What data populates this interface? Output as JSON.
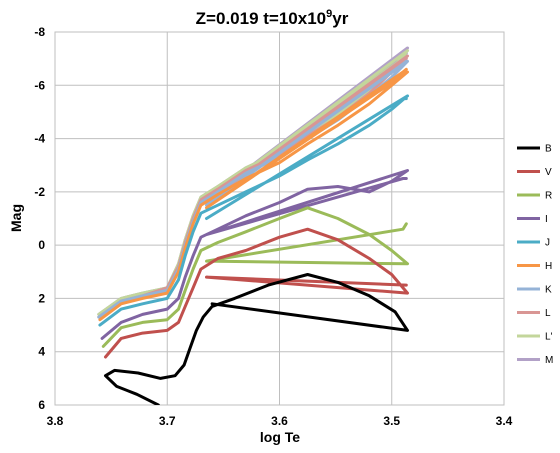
{
  "chart_data": {
    "type": "line",
    "title": {
      "main": "Z=0.019   t=10x10",
      "sup": "9",
      "unit": "yr"
    },
    "xlabel": "log Te",
    "ylabel": "Mag",
    "xlim": [
      3.8,
      3.4
    ],
    "ylim": [
      -8,
      6
    ],
    "xticks": [
      "3.8",
      "3.7",
      "3.6",
      "3.5",
      "3.4"
    ],
    "yticks": [
      "-8",
      "-6",
      "-4",
      "-2",
      "0",
      "2",
      "4",
      "6"
    ],
    "grid": true,
    "legend_position": "right",
    "series": [
      {
        "name": "B",
        "color": "#000000",
        "points": [
          [
            3.708,
            6.0
          ],
          [
            3.727,
            5.6
          ],
          [
            3.745,
            5.3
          ],
          [
            3.755,
            4.9
          ],
          [
            3.747,
            4.7
          ],
          [
            3.726,
            4.8
          ],
          [
            3.706,
            5.0
          ],
          [
            3.693,
            4.9
          ],
          [
            3.685,
            4.5
          ],
          [
            3.68,
            3.9
          ],
          [
            3.674,
            3.2
          ],
          [
            3.668,
            2.7
          ],
          [
            3.66,
            2.3
          ],
          [
            3.64,
            2.0
          ],
          [
            3.61,
            1.5
          ],
          [
            3.575,
            1.1
          ],
          [
            3.548,
            1.4
          ],
          [
            3.52,
            1.9
          ],
          [
            3.497,
            2.5
          ],
          [
            3.486,
            3.2
          ],
          [
            3.66,
            2.2
          ]
        ]
      },
      {
        "name": "V",
        "color": "#c0504d",
        "points": [
          [
            3.755,
            4.2
          ],
          [
            3.741,
            3.5
          ],
          [
            3.722,
            3.3
          ],
          [
            3.7,
            3.2
          ],
          [
            3.69,
            2.9
          ],
          [
            3.684,
            2.3
          ],
          [
            3.677,
            1.6
          ],
          [
            3.67,
            0.9
          ],
          [
            3.655,
            0.5
          ],
          [
            3.63,
            0.2
          ],
          [
            3.6,
            -0.3
          ],
          [
            3.575,
            -0.6
          ],
          [
            3.548,
            -0.2
          ],
          [
            3.52,
            0.5
          ],
          [
            3.5,
            1.1
          ],
          [
            3.486,
            1.8
          ],
          [
            3.665,
            1.2
          ],
          [
            3.487,
            1.5
          ]
        ]
      },
      {
        "name": "R",
        "color": "#9bbb59",
        "points": [
          [
            3.757,
            3.8
          ],
          [
            3.741,
            3.1
          ],
          [
            3.722,
            2.9
          ],
          [
            3.7,
            2.8
          ],
          [
            3.69,
            2.4
          ],
          [
            3.684,
            1.7
          ],
          [
            3.677,
            0.9
          ],
          [
            3.67,
            0.2
          ],
          [
            3.655,
            -0.1
          ],
          [
            3.63,
            -0.5
          ],
          [
            3.6,
            -1.0
          ],
          [
            3.575,
            -1.4
          ],
          [
            3.548,
            -1.0
          ],
          [
            3.52,
            -0.4
          ],
          [
            3.5,
            0.2
          ],
          [
            3.486,
            0.7
          ],
          [
            3.665,
            0.6
          ],
          [
            3.49,
            -0.6
          ],
          [
            3.487,
            -0.8
          ]
        ]
      },
      {
        "name": "I",
        "color": "#8064a2",
        "points": [
          [
            3.758,
            3.5
          ],
          [
            3.741,
            2.9
          ],
          [
            3.722,
            2.6
          ],
          [
            3.7,
            2.4
          ],
          [
            3.69,
            2.0
          ],
          [
            3.684,
            1.2
          ],
          [
            3.677,
            0.4
          ],
          [
            3.67,
            -0.3
          ],
          [
            3.655,
            -0.6
          ],
          [
            3.63,
            -1.1
          ],
          [
            3.6,
            -1.6
          ],
          [
            3.575,
            -2.1
          ],
          [
            3.548,
            -2.2
          ],
          [
            3.52,
            -2.0
          ],
          [
            3.5,
            -2.4
          ],
          [
            3.486,
            -2.8
          ],
          [
            3.665,
            -0.4
          ],
          [
            3.49,
            -2.5
          ],
          [
            3.487,
            -2.5
          ]
        ]
      },
      {
        "name": "J",
        "color": "#4bacc6",
        "points": [
          [
            3.76,
            3.0
          ],
          [
            3.741,
            2.4
          ],
          [
            3.722,
            2.2
          ],
          [
            3.7,
            2.0
          ],
          [
            3.69,
            1.3
          ],
          [
            3.684,
            0.4
          ],
          [
            3.677,
            -0.5
          ],
          [
            3.67,
            -1.2
          ],
          [
            3.655,
            -1.5
          ],
          [
            3.63,
            -2.0
          ],
          [
            3.6,
            -2.6
          ],
          [
            3.575,
            -3.2
          ],
          [
            3.548,
            -3.8
          ],
          [
            3.52,
            -4.5
          ],
          [
            3.5,
            -5.1
          ],
          [
            3.486,
            -5.6
          ],
          [
            3.665,
            -1.0
          ],
          [
            3.49,
            -5.5
          ],
          [
            3.487,
            -5.5
          ]
        ]
      },
      {
        "name": "H",
        "color": "#f79646",
        "points": [
          [
            3.76,
            2.8
          ],
          [
            3.741,
            2.2
          ],
          [
            3.722,
            2.0
          ],
          [
            3.7,
            1.8
          ],
          [
            3.69,
            1.0
          ],
          [
            3.684,
            0.1
          ],
          [
            3.677,
            -0.8
          ],
          [
            3.67,
            -1.5
          ],
          [
            3.655,
            -1.9
          ],
          [
            3.63,
            -2.5
          ],
          [
            3.6,
            -3.1
          ],
          [
            3.575,
            -3.8
          ],
          [
            3.548,
            -4.5
          ],
          [
            3.52,
            -5.3
          ],
          [
            3.5,
            -6.0
          ],
          [
            3.486,
            -6.5
          ],
          [
            3.665,
            -1.4
          ],
          [
            3.49,
            -6.5
          ],
          [
            3.487,
            -6.6
          ]
        ]
      },
      {
        "name": "K",
        "color": "#95b3d7",
        "points": [
          [
            3.761,
            2.7
          ],
          [
            3.741,
            2.1
          ],
          [
            3.722,
            1.9
          ],
          [
            3.7,
            1.7
          ],
          [
            3.69,
            0.9
          ],
          [
            3.684,
            0.0
          ],
          [
            3.677,
            -0.9
          ],
          [
            3.67,
            -1.6
          ],
          [
            3.655,
            -2.0
          ],
          [
            3.63,
            -2.7
          ],
          [
            3.6,
            -3.3
          ],
          [
            3.575,
            -4.0
          ],
          [
            3.548,
            -4.7
          ],
          [
            3.52,
            -5.6
          ],
          [
            3.5,
            -6.3
          ],
          [
            3.486,
            -6.9
          ],
          [
            3.665,
            -1.5
          ],
          [
            3.49,
            -6.8
          ],
          [
            3.487,
            -6.9
          ]
        ]
      },
      {
        "name": "L",
        "color": "#d99694",
        "points": [
          [
            3.761,
            2.7
          ],
          [
            3.741,
            2.1
          ],
          [
            3.722,
            1.9
          ],
          [
            3.7,
            1.6
          ],
          [
            3.69,
            0.8
          ],
          [
            3.684,
            -0.1
          ],
          [
            3.677,
            -1.0
          ],
          [
            3.67,
            -1.7
          ],
          [
            3.655,
            -2.1
          ],
          [
            3.63,
            -2.8
          ],
          [
            3.6,
            -3.4
          ],
          [
            3.575,
            -4.1
          ],
          [
            3.548,
            -4.8
          ],
          [
            3.52,
            -5.7
          ],
          [
            3.5,
            -6.5
          ],
          [
            3.486,
            -7.1
          ],
          [
            3.665,
            -1.6
          ],
          [
            3.49,
            -6.9
          ],
          [
            3.487,
            -7.0
          ]
        ]
      },
      {
        "name": "L'",
        "color": "#c3d69b",
        "points": [
          [
            3.761,
            2.6
          ],
          [
            3.741,
            2.0
          ],
          [
            3.722,
            1.8
          ],
          [
            3.7,
            1.6
          ],
          [
            3.69,
            0.7
          ],
          [
            3.684,
            -0.2
          ],
          [
            3.677,
            -1.1
          ],
          [
            3.67,
            -1.8
          ],
          [
            3.655,
            -2.2
          ],
          [
            3.63,
            -2.9
          ],
          [
            3.6,
            -3.5
          ],
          [
            3.575,
            -4.2
          ],
          [
            3.548,
            -4.9
          ],
          [
            3.52,
            -5.8
          ],
          [
            3.5,
            -6.6
          ],
          [
            3.486,
            -7.3
          ],
          [
            3.665,
            -1.7
          ],
          [
            3.49,
            -7.0
          ],
          [
            3.487,
            -7.1
          ]
        ]
      },
      {
        "name": "M",
        "color": "#b2a1c7",
        "points": [
          [
            3.761,
            2.6
          ],
          [
            3.741,
            2.0
          ],
          [
            3.722,
            1.8
          ],
          [
            3.7,
            1.6
          ],
          [
            3.69,
            0.7
          ],
          [
            3.684,
            -0.2
          ],
          [
            3.677,
            -1.1
          ],
          [
            3.67,
            -1.8
          ],
          [
            3.655,
            -2.2
          ],
          [
            3.63,
            -2.9
          ],
          [
            3.6,
            -3.5
          ],
          [
            3.575,
            -4.2
          ],
          [
            3.548,
            -4.9
          ],
          [
            3.52,
            -5.8
          ],
          [
            3.5,
            -6.6
          ],
          [
            3.486,
            -7.4
          ],
          [
            3.665,
            -1.7
          ],
          [
            3.49,
            -7.1
          ],
          [
            3.487,
            -7.2
          ]
        ]
      }
    ]
  }
}
